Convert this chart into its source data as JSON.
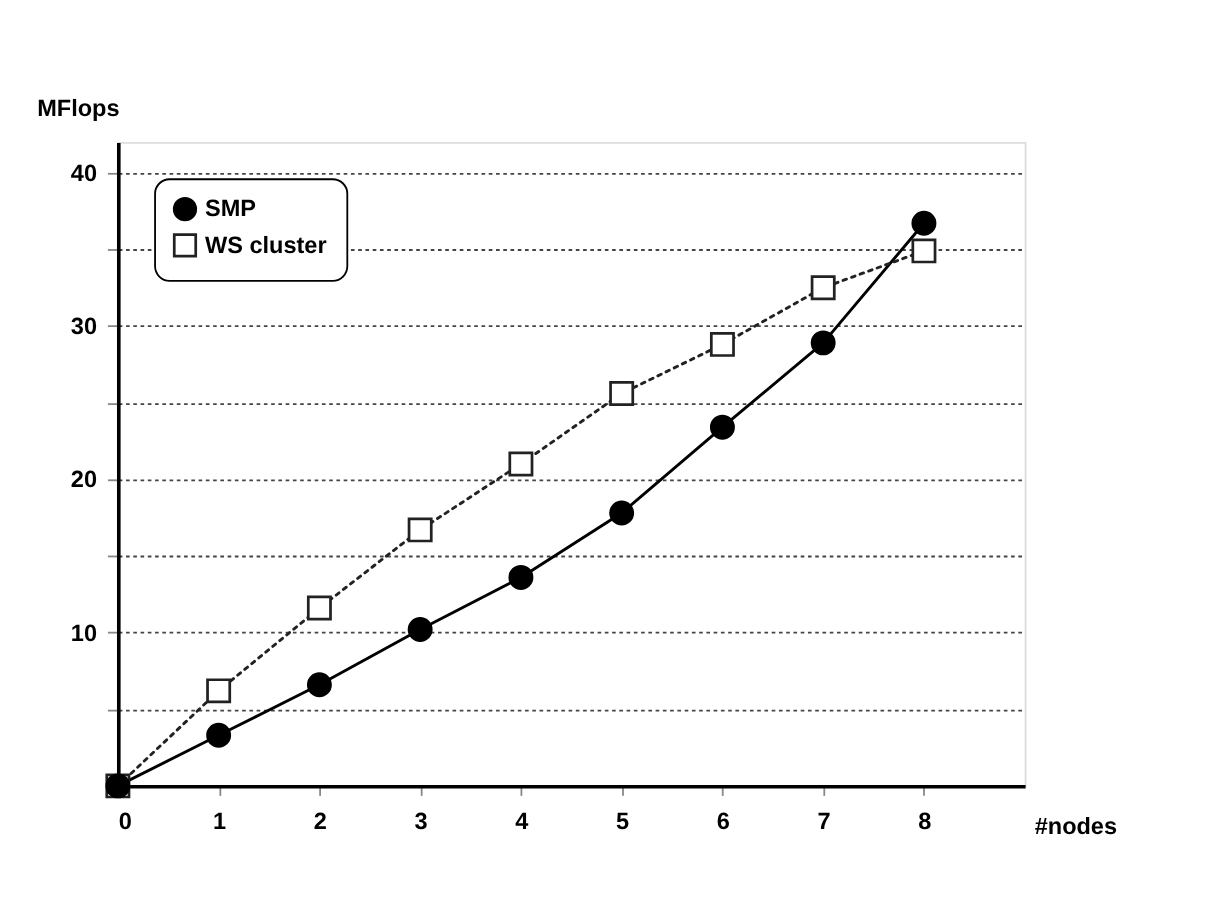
{
  "chart_data": {
    "type": "line",
    "xlabel": "#nodes",
    "ylabel": "MFlops",
    "x": [
      0,
      1,
      2,
      3,
      4,
      5,
      6,
      7,
      8
    ],
    "series": [
      {
        "name": "SMP",
        "color": "#000000",
        "marker": "circle",
        "line_style": "solid",
        "values": [
          0,
          3.3,
          6.6,
          10.2,
          13.6,
          17.8,
          23.4,
          28.9,
          36.7
        ]
      },
      {
        "name": "WS cluster",
        "color": "#222222",
        "marker": "square",
        "line_style": "dotted",
        "values": [
          0,
          6.2,
          11.6,
          16.7,
          21.0,
          25.6,
          28.8,
          32.5,
          34.9
        ]
      }
    ],
    "xlim": [
      0,
      9
    ],
    "xticks": [
      0,
      1,
      2,
      3,
      4,
      5,
      6,
      7,
      8
    ],
    "ylim": [
      0,
      42
    ],
    "yticks": [
      {
        "value": 5,
        "label": null
      },
      10,
      {
        "value": 15,
        "label": null
      },
      20,
      {
        "value": 25,
        "label": null
      },
      30,
      {
        "value": 35,
        "label": null
      },
      40
    ],
    "grid": "y",
    "legend": "top left"
  }
}
